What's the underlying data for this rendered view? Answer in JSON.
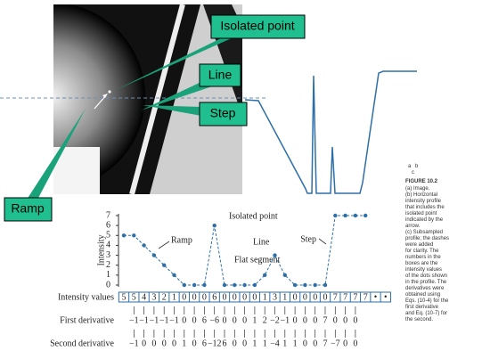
{
  "callouts": {
    "isolated_point": "Isolated point",
    "line": "Line",
    "step": "Step",
    "ramp": "Ramp"
  },
  "panel_labels": {
    "a": "a",
    "b": "b",
    "c": "c"
  },
  "caption": {
    "figure": "FIGURE 10.2",
    "lines": [
      "(a) Image.",
      "(b) Horizontal",
      "intensity profile",
      "that includes the",
      "isolated point",
      "indicated by the",
      "arrow.",
      "(c) Subsampled",
      "profile; the dashes",
      "were added",
      "for clarity. The",
      "numbers in the",
      "boxes are the",
      "intensity values",
      "of the dots shown",
      "in the profile. The",
      "derivatives were",
      "obtained using",
      "Eqs. (10-4) for the",
      "first derivative",
      "and Eq. (10-7) for",
      "the second."
    ]
  },
  "chart_data": {
    "type": "line",
    "y_label": "Intensity",
    "values": [
      5,
      5,
      4,
      3,
      2,
      1,
      0,
      0,
      0,
      6,
      0,
      0,
      0,
      0,
      1,
      3,
      1,
      0,
      0,
      0,
      0,
      7,
      7,
      7,
      7
    ],
    "color": "#2e6fa8",
    "ylim": [
      0,
      7
    ],
    "yticks": [
      0,
      1,
      2,
      3,
      4,
      5,
      6,
      7
    ],
    "annotations": [
      "Isolated point",
      "Ramp",
      "Line",
      "Flat segment",
      "Step"
    ]
  },
  "rows": {
    "intensity_label": "Intensity values",
    "trailing_marks": [
      "•",
      "•"
    ],
    "first_label": "First derivative",
    "first": [
      -1,
      -1,
      -1,
      -1,
      -1,
      0,
      0,
      6,
      -6,
      0,
      0,
      0,
      1,
      2,
      -2,
      -1,
      0,
      0,
      0,
      7,
      0,
      0,
      0
    ],
    "second_label": "Second derivative",
    "second": [
      -1,
      0,
      0,
      0,
      0,
      1,
      0,
      6,
      -12,
      6,
      0,
      0,
      1,
      1,
      -4,
      1,
      1,
      0,
      0,
      7,
      -7,
      0,
      0
    ]
  }
}
